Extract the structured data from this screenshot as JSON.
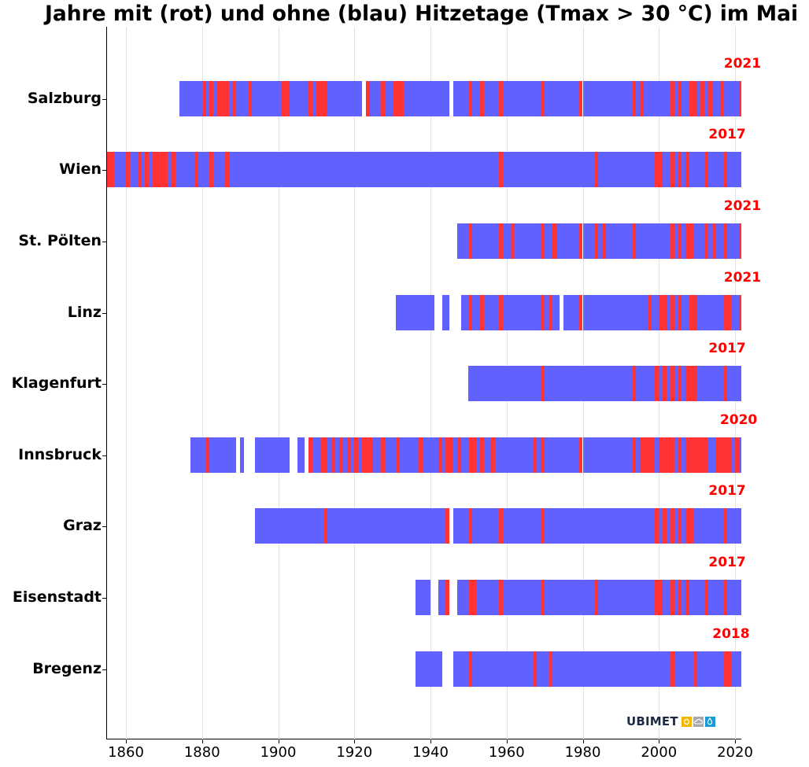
{
  "chart_data": {
    "type": "bar",
    "subtype": "broken_barh_timeline",
    "title": "Jahre mit (rot) und ohne (blau) Hitzetage (Tmax > 30 °C) im Mai",
    "xlabel": "",
    "ylabel": "",
    "xlim": [
      1855,
      2022.6
    ],
    "xticks": [
      1860,
      1880,
      1900,
      1920,
      1940,
      1960,
      1980,
      2000,
      2020
    ],
    "grid": "vertical",
    "legend": null,
    "colors": {
      "hot_year": "#ff3333",
      "normal_year": "#6161ff",
      "label": "#ff0000"
    },
    "categories": [
      "Salzburg",
      "Wien",
      "St. Pölten",
      "Linz",
      "Klagenfurt",
      "Innsbruck",
      "Graz",
      "Eisenstadt",
      "Bregenz"
    ],
    "series": [
      {
        "name": "Salzburg",
        "last_hot_year": "2021",
        "coverage": [
          [
            1874,
            1922
          ],
          [
            1923,
            1945
          ],
          [
            1946,
            2022
          ]
        ],
        "hot_years": [
          1880,
          1882,
          1884,
          1885,
          1886,
          1888,
          1892,
          1901,
          1902,
          1908,
          1910,
          1911,
          1912,
          1923,
          1927,
          1930,
          1931,
          1932,
          1950,
          1953,
          1958,
          1969,
          1979,
          1993,
          1995,
          2003,
          2005,
          2008,
          2009,
          2011,
          2013,
          2016,
          2021
        ]
      },
      {
        "name": "Wien",
        "last_hot_year": "2017",
        "coverage": [
          [
            1855,
            2022
          ]
        ],
        "hot_years": [
          1855,
          1856,
          1860,
          1863,
          1865,
          1867,
          1868,
          1869,
          1870,
          1872,
          1878,
          1882,
          1886,
          1958,
          1983,
          1999,
          2000,
          2003,
          2005,
          2007,
          2012,
          2017
        ]
      },
      {
        "name": "St. Pölten",
        "last_hot_year": "2021",
        "coverage": [
          [
            1947,
            2022
          ]
        ],
        "hot_years": [
          1950,
          1958,
          1961,
          1969,
          1972,
          1979,
          1983,
          1985,
          1993,
          2003,
          2005,
          2007,
          2008,
          2012,
          2014,
          2017,
          2021
        ]
      },
      {
        "name": "Linz",
        "last_hot_year": "2021",
        "coverage": [
          [
            1931,
            1941
          ],
          [
            1943,
            1945
          ],
          [
            1948,
            1974
          ],
          [
            1975,
            2022
          ]
        ],
        "hot_years": [
          1950,
          1953,
          1958,
          1969,
          1971,
          1979,
          1997,
          2000,
          2001,
          2003,
          2005,
          2008,
          2009,
          2017,
          2018,
          2021
        ]
      },
      {
        "name": "Klagenfurt",
        "last_hot_year": "2017",
        "coverage": [
          [
            1950,
            2022
          ]
        ],
        "hot_years": [
          1969,
          1993,
          1999,
          2001,
          2003,
          2005,
          2007,
          2008,
          2009,
          2017
        ]
      },
      {
        "name": "Innsbruck",
        "last_hot_year": "2020",
        "coverage": [
          [
            1877,
            1889
          ],
          [
            1890,
            1891
          ],
          [
            1894,
            1903
          ],
          [
            1905,
            1907
          ],
          [
            1908,
            2022
          ]
        ],
        "hot_years": [
          1881,
          1908,
          1911,
          1912,
          1914,
          1916,
          1918,
          1920,
          1922,
          1923,
          1924,
          1927,
          1931,
          1937,
          1942,
          1944,
          1945,
          1947,
          1950,
          1951,
          1953,
          1956,
          1967,
          1969,
          1979,
          1993,
          1995,
          1996,
          1997,
          1998,
          2000,
          2001,
          2002,
          2003,
          2005,
          2007,
          2008,
          2009,
          2010,
          2011,
          2012,
          2015,
          2016,
          2017,
          2018,
          2020
        ]
      },
      {
        "name": "Graz",
        "last_hot_year": "2017",
        "coverage": [
          [
            1894,
            1945
          ],
          [
            1946,
            2022
          ]
        ],
        "hot_years": [
          1912,
          1944,
          1950,
          1958,
          1969,
          1999,
          2001,
          2003,
          2005,
          2007,
          2008,
          2017
        ]
      },
      {
        "name": "Eisenstadt",
        "last_hot_year": "2017",
        "coverage": [
          [
            1936,
            1940
          ],
          [
            1942,
            1945
          ],
          [
            1947,
            2022
          ]
        ],
        "hot_years": [
          1944,
          1950,
          1951,
          1958,
          1969,
          1983,
          1999,
          2000,
          2003,
          2005,
          2007,
          2012,
          2017
        ]
      },
      {
        "name": "Bregenz",
        "last_hot_year": "2018",
        "coverage": [
          [
            1936,
            1943
          ],
          [
            1946,
            2022
          ]
        ],
        "hot_years": [
          1950,
          1967,
          1971,
          2003,
          2009,
          2017,
          2018
        ]
      }
    ]
  },
  "chart": {
    "title": "Jahre mit (rot) und ohne (blau) Hitzetage (Tmax > 30 °C) im Mai",
    "xtick_labels": [
      "1860",
      "1880",
      "1900",
      "1920",
      "1940",
      "1960",
      "1980",
      "2000",
      "2020"
    ]
  },
  "logo": {
    "text": "UBIMET",
    "icons": [
      "sun-icon",
      "cloud-icon",
      "raindrop-icon"
    ],
    "icon_colors": [
      "#f5b800",
      "#a7a9ac",
      "#1a9ad6"
    ]
  }
}
